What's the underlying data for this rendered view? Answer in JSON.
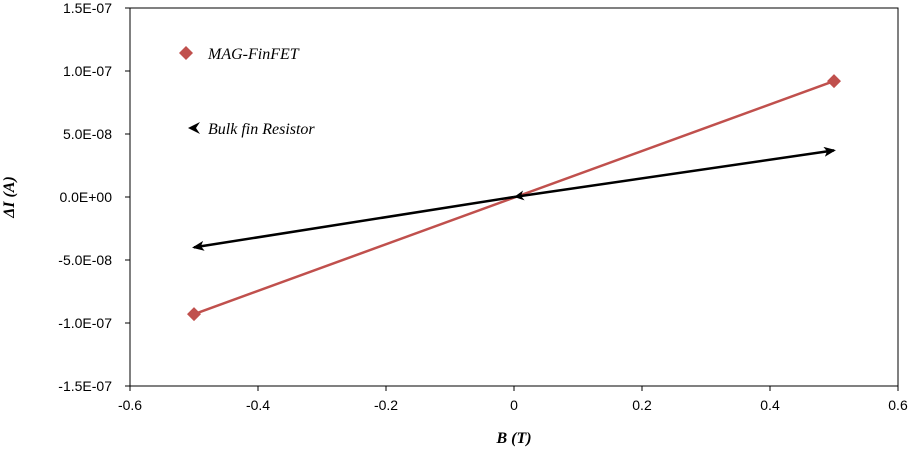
{
  "chart_data": {
    "type": "scatter",
    "xlabel": "B (T)",
    "ylabel": "ΔI (A)",
    "xlim": [
      -0.6,
      0.6
    ],
    "ylim": [
      -1.5e-07,
      1.5e-07
    ],
    "xticks": [
      -0.6,
      -0.4,
      -0.2,
      0,
      0.2,
      0.4,
      0.6
    ],
    "xtick_labels": [
      "-0.6",
      "-0.4",
      "-0.2",
      "0",
      "0.2",
      "0.4",
      "0.6"
    ],
    "yticks": [
      1.5e-07,
      1e-07,
      5e-08,
      0,
      -5e-08,
      -1e-07,
      -1.5e-07
    ],
    "ytick_labels": [
      "1.5E-07",
      "1.0E-07",
      "5.0E-08",
      "0.0E+00",
      "-5.0E-08",
      "-1.0E-07",
      "-1.5E-07"
    ],
    "grid": false,
    "legend_position": "top-left",
    "series": [
      {
        "name": "MAG-FinFET",
        "marker": "diamond",
        "color": "#c0504d",
        "x": [
          -0.5,
          0.5
        ],
        "y": [
          -9.3e-08,
          9.2e-08
        ]
      },
      {
        "name": "Bulk fin Resistor",
        "marker": "arrow",
        "color": "#000000",
        "x": [
          -0.5,
          0,
          0.5
        ],
        "y": [
          -4e-08,
          0,
          3.7e-08
        ]
      }
    ]
  }
}
